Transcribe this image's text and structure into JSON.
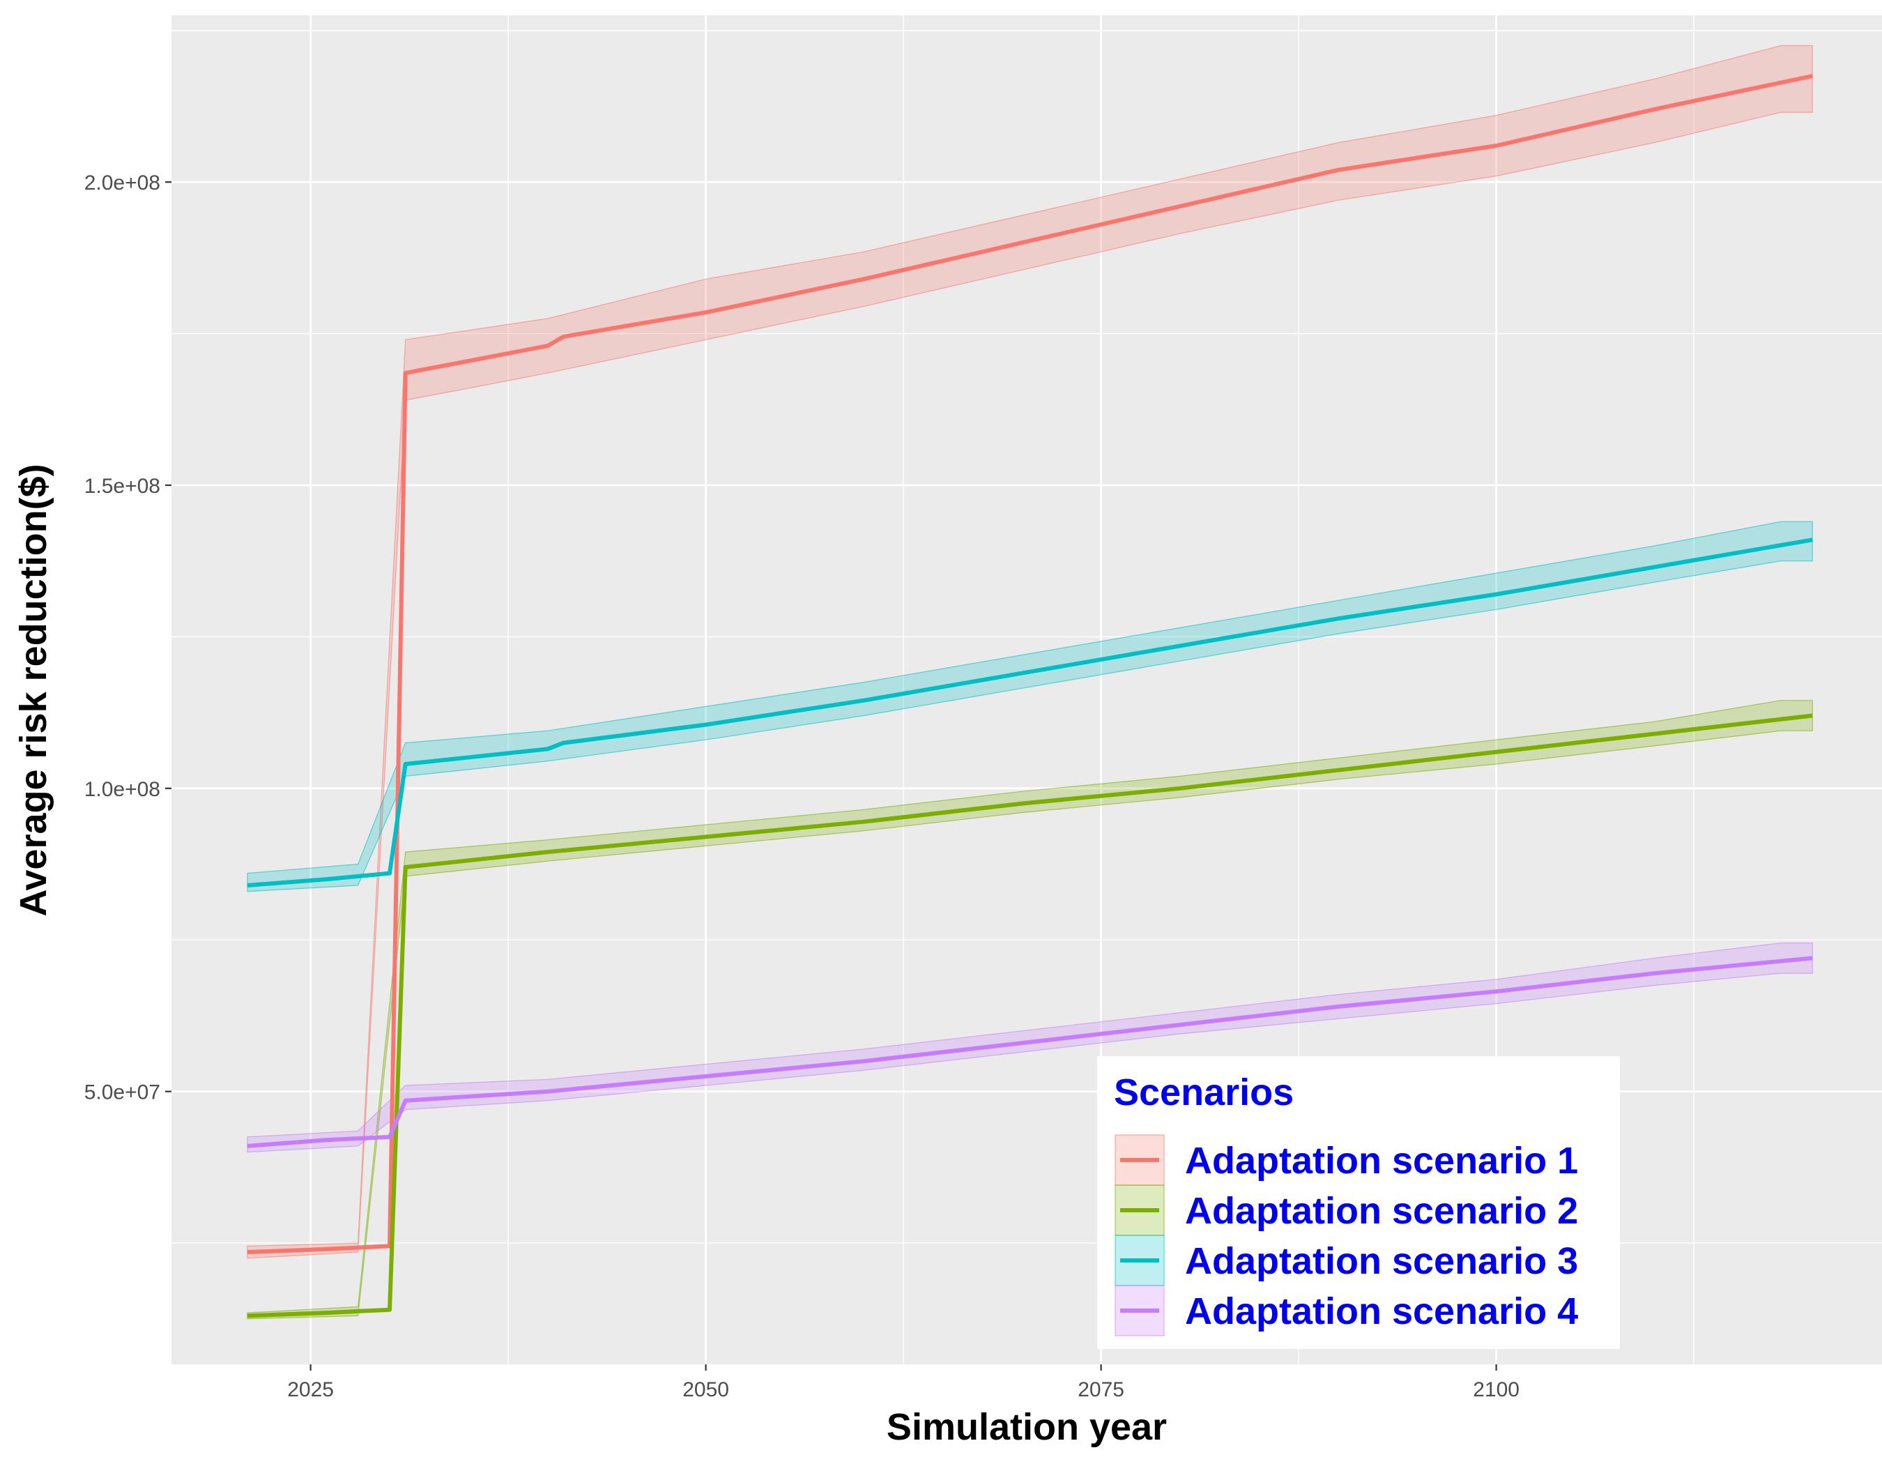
{
  "chart_data": {
    "type": "line",
    "xlabel": "Simulation year",
    "ylabel": "Average risk reduction($)",
    "xlim": [
      2016.2,
      2124.4
    ],
    "ylim": [
      5000000,
      227500000
    ],
    "x_ticks": [
      2025,
      2050,
      2075,
      2100
    ],
    "x_tick_labels": [
      "2025",
      "2050",
      "2075",
      "2100"
    ],
    "y_ticks": [
      50000000,
      100000000,
      150000000,
      200000000
    ],
    "y_tick_labels": [
      "5.0e+07",
      "1.0e+08",
      "1.5e+08",
      "2.0e+08"
    ],
    "grid": true,
    "legend": {
      "title": "Scenarios",
      "position": "bottom-right",
      "text_color": "#0000ee"
    },
    "series": [
      {
        "name": "Adaptation scenario 1",
        "color": "#F8766D",
        "points": [
          [
            2021,
            23500000
          ],
          [
            2026,
            24000000
          ],
          [
            2030,
            24500000
          ],
          [
            2031,
            168500000
          ],
          [
            2040,
            173000000
          ],
          [
            2041,
            174500000
          ],
          [
            2050,
            178500000
          ],
          [
            2060,
            184000000
          ],
          [
            2070,
            190000000
          ],
          [
            2080,
            196000000
          ],
          [
            2090,
            202000000
          ],
          [
            2100,
            206000000
          ],
          [
            2110,
            212000000
          ],
          [
            2120,
            217500000
          ]
        ],
        "band": [
          [
            2021,
            22500000,
            24500000
          ],
          [
            2028,
            23500000,
            25000000
          ],
          [
            2031,
            164000000,
            174000000
          ],
          [
            2040,
            168500000,
            177500000
          ],
          [
            2050,
            174000000,
            184000000
          ],
          [
            2060,
            179500000,
            188500000
          ],
          [
            2070,
            185500000,
            194500000
          ],
          [
            2080,
            191500000,
            200500000
          ],
          [
            2090,
            197000000,
            206500000
          ],
          [
            2100,
            201000000,
            211000000
          ],
          [
            2110,
            206500000,
            217000000
          ],
          [
            2118,
            211500000,
            222500000
          ],
          [
            2120,
            211500000,
            222500000
          ]
        ]
      },
      {
        "name": "Adaptation scenario 2",
        "color": "#7CAE00",
        "points": [
          [
            2021,
            13000000
          ],
          [
            2026,
            13500000
          ],
          [
            2030,
            14000000
          ],
          [
            2031,
            87000000
          ],
          [
            2040,
            89500000
          ],
          [
            2050,
            92000000
          ],
          [
            2060,
            94500000
          ],
          [
            2070,
            97500000
          ],
          [
            2080,
            100000000
          ],
          [
            2090,
            103000000
          ],
          [
            2100,
            106000000
          ],
          [
            2110,
            109000000
          ],
          [
            2120,
            112000000
          ]
        ],
        "band": [
          [
            2021,
            12500000,
            13500000
          ],
          [
            2028,
            13000000,
            14500000
          ],
          [
            2031,
            85500000,
            89500000
          ],
          [
            2040,
            88000000,
            91500000
          ],
          [
            2050,
            90500000,
            94000000
          ],
          [
            2060,
            93000000,
            96500000
          ],
          [
            2070,
            96000000,
            99500000
          ],
          [
            2080,
            98500000,
            102000000
          ],
          [
            2090,
            101500000,
            105000000
          ],
          [
            2100,
            104000000,
            108000000
          ],
          [
            2110,
            107000000,
            111000000
          ],
          [
            2118,
            109500000,
            114500000
          ],
          [
            2120,
            109500000,
            114500000
          ]
        ]
      },
      {
        "name": "Adaptation scenario 3",
        "color": "#00BFC4",
        "points": [
          [
            2021,
            84000000
          ],
          [
            2026,
            85000000
          ],
          [
            2030,
            86000000
          ],
          [
            2031,
            104000000
          ],
          [
            2040,
            106500000
          ],
          [
            2041,
            107500000
          ],
          [
            2050,
            110500000
          ],
          [
            2060,
            114500000
          ],
          [
            2070,
            119000000
          ],
          [
            2080,
            123500000
          ],
          [
            2090,
            128000000
          ],
          [
            2100,
            132000000
          ],
          [
            2110,
            136500000
          ],
          [
            2120,
            141000000
          ]
        ],
        "band": [
          [
            2021,
            83000000,
            86000000
          ],
          [
            2028,
            84000000,
            87500000
          ],
          [
            2031,
            102000000,
            107500000
          ],
          [
            2040,
            104500000,
            109500000
          ],
          [
            2050,
            108000000,
            113500000
          ],
          [
            2060,
            112000000,
            117500000
          ],
          [
            2070,
            116500000,
            122000000
          ],
          [
            2080,
            121000000,
            126500000
          ],
          [
            2090,
            125500000,
            131000000
          ],
          [
            2100,
            129500000,
            135500000
          ],
          [
            2110,
            134000000,
            140000000
          ],
          [
            2118,
            137500000,
            144000000
          ],
          [
            2120,
            137500000,
            144000000
          ]
        ]
      },
      {
        "name": "Adaptation scenario 4",
        "color": "#C77CFF",
        "points": [
          [
            2021,
            41000000
          ],
          [
            2026,
            42000000
          ],
          [
            2030,
            42500000
          ],
          [
            2031,
            48500000
          ],
          [
            2040,
            50000000
          ],
          [
            2050,
            52500000
          ],
          [
            2060,
            55000000
          ],
          [
            2070,
            58000000
          ],
          [
            2080,
            61000000
          ],
          [
            2090,
            64000000
          ],
          [
            2100,
            66500000
          ],
          [
            2110,
            69500000
          ],
          [
            2120,
            72000000
          ]
        ],
        "band": [
          [
            2021,
            40000000,
            42500000
          ],
          [
            2028,
            41000000,
            43500000
          ],
          [
            2031,
            47000000,
            51000000
          ],
          [
            2040,
            48500000,
            52000000
          ],
          [
            2050,
            51000000,
            54500000
          ],
          [
            2060,
            53500000,
            57000000
          ],
          [
            2070,
            56500000,
            60000000
          ],
          [
            2080,
            59500000,
            63000000
          ],
          [
            2090,
            62000000,
            66000000
          ],
          [
            2100,
            64500000,
            68500000
          ],
          [
            2110,
            67500000,
            72000000
          ],
          [
            2118,
            69500000,
            74500000
          ],
          [
            2120,
            69500000,
            74500000
          ]
        ]
      }
    ]
  }
}
